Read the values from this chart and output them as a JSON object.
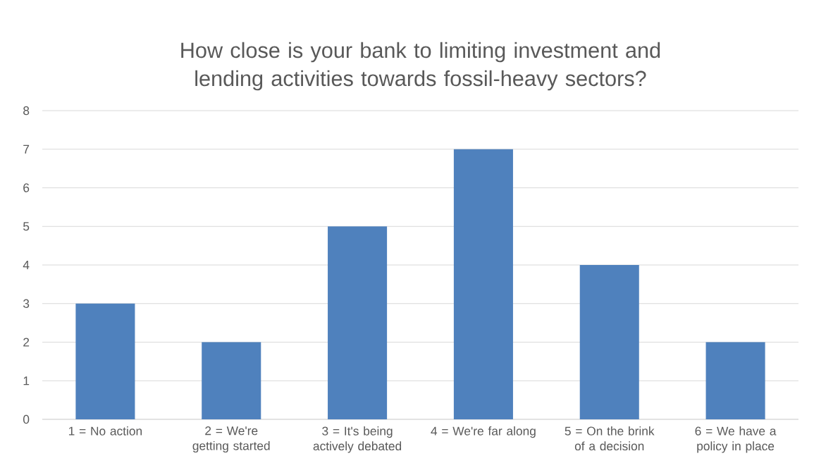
{
  "chart_data": {
    "type": "bar",
    "title": "How close is your bank to limiting investment and lending activities towards fossil-heavy sectors?",
    "categories": [
      "1 = No action",
      "2 = We're getting started",
      "3 = It's being actively debated",
      "4 = We're far along",
      "5 = On the brink of a decision",
      "6 = We have a policy in place"
    ],
    "values": [
      3,
      2,
      5,
      7,
      4,
      2
    ],
    "color": "#4f81bd",
    "ylim": [
      0,
      8
    ],
    "yticks": [
      0,
      1,
      2,
      3,
      4,
      5,
      6,
      7,
      8
    ],
    "grid": "y"
  }
}
